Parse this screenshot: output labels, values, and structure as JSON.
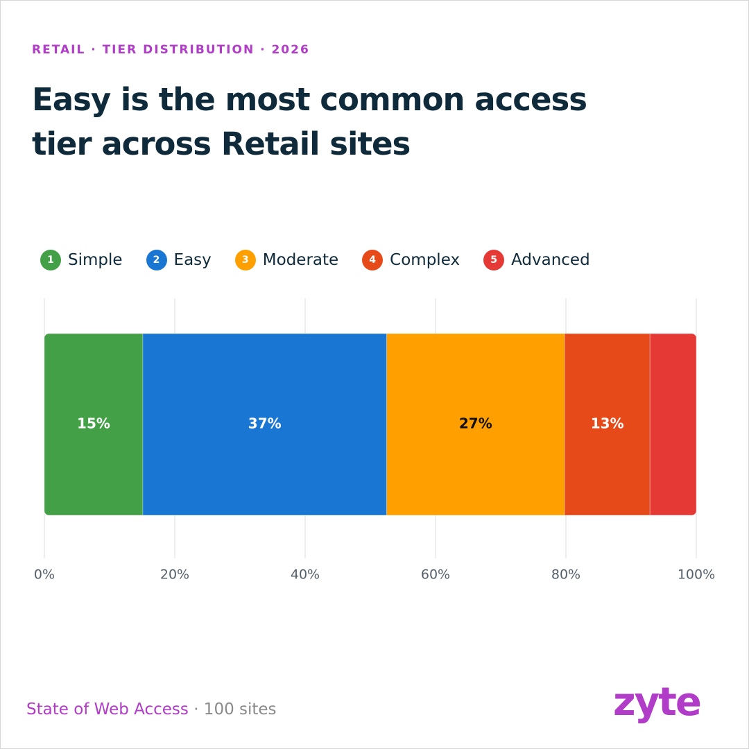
{
  "chart_data": {
    "type": "stacked_bar",
    "kicker": "RETAIL · TIER DISTRIBUTION · 2026",
    "title": "Easy is the most common access tier across Retail sites",
    "series": [
      {
        "name": "Simple",
        "tier": 1,
        "color": "#43a047",
        "values": [
          15.1
        ],
        "value_labels": [
          "15%"
        ]
      },
      {
        "name": "Easy",
        "tier": 2,
        "color": "#1976d2",
        "values": [
          37.4
        ],
        "value_labels": [
          "37%"
        ]
      },
      {
        "name": "Moderate",
        "tier": 3,
        "color": "#ffa000",
        "values": [
          27.3
        ],
        "value_labels": [
          "27%"
        ]
      },
      {
        "name": "Complex",
        "tier": 4,
        "color": "#e64a19",
        "values": [
          13.1
        ],
        "value_labels": [
          "13%"
        ]
      },
      {
        "name": "Advanced",
        "tier": 5,
        "color": "#e53935",
        "values": [
          7.1
        ],
        "value_labels": [
          null
        ]
      }
    ],
    "xlim": [
      0,
      100
    ],
    "xticks": [
      {
        "value": 0,
        "label": "0%"
      },
      {
        "value": 20,
        "label": "20%"
      },
      {
        "value": 40,
        "label": "40%"
      },
      {
        "value": 60,
        "label": "60%"
      },
      {
        "value": 80,
        "label": "80%"
      },
      {
        "value": 100,
        "label": "100%"
      }
    ],
    "grid": true,
    "footer_source": "State of Web Access",
    "footer_note": "· 100 sites",
    "logo": "zyte"
  }
}
